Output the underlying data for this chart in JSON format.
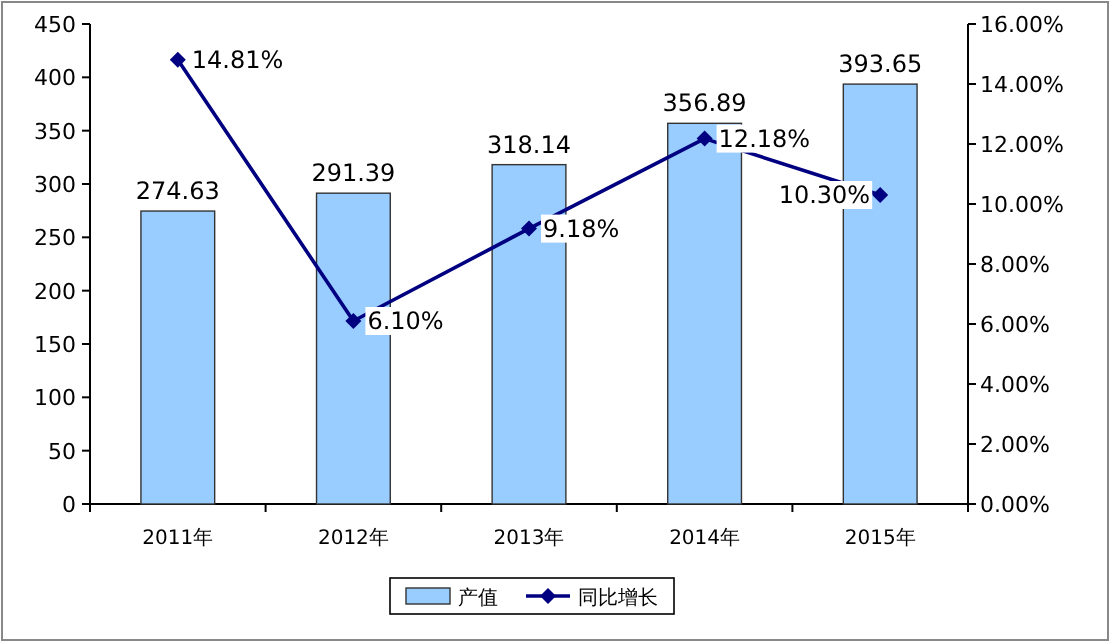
{
  "chart_data": {
    "type": "bar",
    "categories": [
      "2011年",
      "2012年",
      "2013年",
      "2014年",
      "2015年"
    ],
    "series": [
      {
        "name": "产值",
        "color": "#99ccff",
        "values": [
          274.63,
          291.39,
          318.14,
          356.89,
          393.65
        ],
        "value_labels": [
          "274.63",
          "291.39",
          "318.14",
          "356.89",
          "393.65"
        ]
      },
      {
        "name": "同比增长",
        "type": "line",
        "axis": "y2",
        "color": "#000080",
        "marker": "diamond",
        "values": [
          14.81,
          6.1,
          9.18,
          12.18,
          10.3
        ],
        "value_labels": [
          "14.81%",
          "6.10%",
          "9.18%",
          "12.18%",
          "10.30%"
        ]
      }
    ],
    "ylim": [
      0,
      450
    ],
    "yticks": [
      0,
      50,
      100,
      150,
      200,
      250,
      300,
      350,
      400,
      450
    ],
    "y2lim": [
      0,
      16
    ],
    "y2ticks": [
      {
        "value": 0,
        "label": "0.00%"
      },
      {
        "value": 2,
        "label": "2.00%"
      },
      {
        "value": 4,
        "label": "4.00%"
      },
      {
        "value": 6,
        "label": "6.00%"
      },
      {
        "value": 8,
        "label": "8.00%"
      },
      {
        "value": 10,
        "label": "10.00%"
      },
      {
        "value": 12,
        "label": "12.00%"
      },
      {
        "value": 14,
        "label": "14.00%"
      },
      {
        "value": 16,
        "label": "16.00%"
      }
    ],
    "legend": "bottom"
  }
}
